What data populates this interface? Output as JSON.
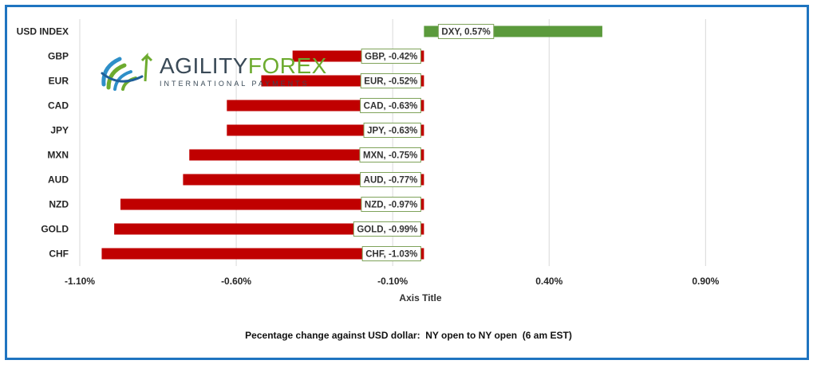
{
  "chart_data": {
    "type": "bar",
    "orientation": "horizontal",
    "categories": [
      "USD INDEX",
      "GBP",
      "EUR",
      "CAD",
      "JPY",
      "MXN",
      "AUD",
      "NZD",
      "GOLD",
      "CHF"
    ],
    "values": [
      0.57,
      -0.42,
      -0.52,
      -0.63,
      -0.63,
      -0.75,
      -0.77,
      -0.97,
      -0.99,
      -1.03
    ],
    "data_labels": [
      "DXY, 0.57%",
      "GBP, -0.42%",
      "EUR, -0.52%",
      "CAD, -0.63%",
      "JPY, -0.63%",
      "MXN, -0.75%",
      "AUD, -0.77%",
      "NZD, -0.97%",
      "GOLD, -0.99%",
      "CHF, -1.03%"
    ],
    "x_ticks": [
      -1.1,
      -0.6,
      -0.1,
      0.4,
      0.9
    ],
    "x_tick_labels": [
      "-1.10%",
      "-0.60%",
      "-0.10%",
      "0.40%",
      "0.90%"
    ],
    "xlim": [
      -1.1,
      1.2
    ],
    "xlabel": "Axis Title",
    "caption": "Pecentage change against USD dollar:  NY open to NY open  (6 am EST)",
    "grid": true,
    "colors": {
      "positive": "#5b9a3c",
      "negative": "#c00000",
      "grid": "#d9d9d9",
      "frame": "#1f74c0"
    }
  },
  "logo": {
    "word_part1": "AGILITY",
    "word_part2": "FOREX",
    "subtitle": "INTERNATIONAL PAYMENTS",
    "colors": {
      "text": "#3a4a57",
      "accent": "#6dab2f",
      "globe": "#2e8fc8"
    }
  }
}
